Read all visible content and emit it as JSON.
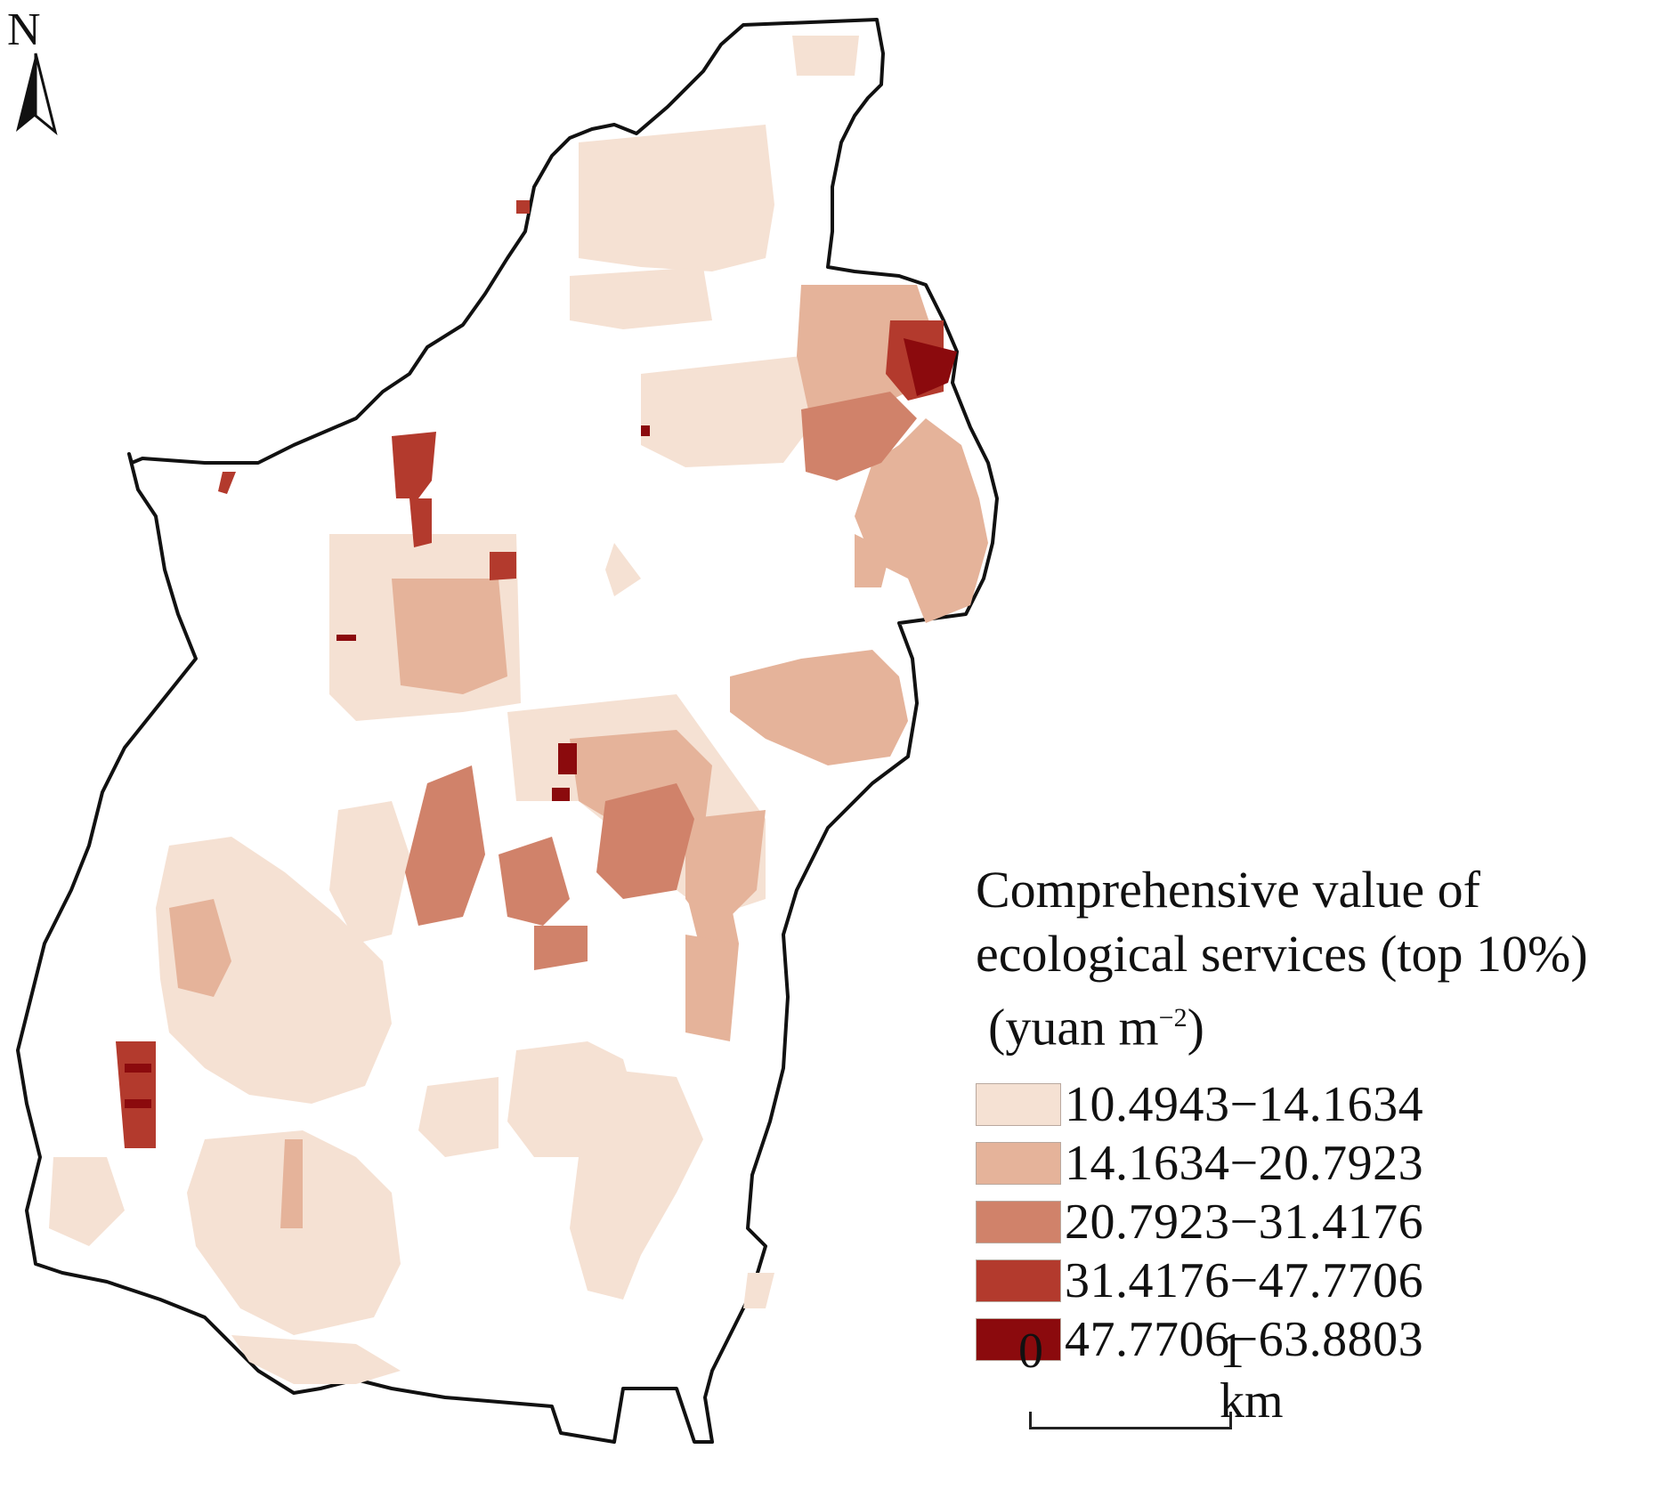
{
  "north_arrow": {
    "letter": "N",
    "icon": "north-arrow-icon"
  },
  "legend": {
    "title_line1": "Comprehensive value of",
    "title_line2": "ecological services (top 10%)",
    "title_unit_prefix": "(yuan m",
    "title_unit_exp": "−2",
    "title_unit_suffix": ")",
    "classes": [
      {
        "range": "10.4943−14.1634",
        "color": "#f5e1d3"
      },
      {
        "range": "14.1634−20.7923",
        "color": "#e5b39a"
      },
      {
        "range": "20.7923−31.4176",
        "color": "#d0826a"
      },
      {
        "range": "31.4176−47.7706",
        "color": "#b33a2d"
      },
      {
        "range": "47.7706−63.8803",
        "color": "#8b0a0d"
      }
    ]
  },
  "scale_bar": {
    "start": "0",
    "end": "1",
    "unit": "km"
  },
  "colors": {
    "boundary": "#111111",
    "background": "#ffffff"
  }
}
